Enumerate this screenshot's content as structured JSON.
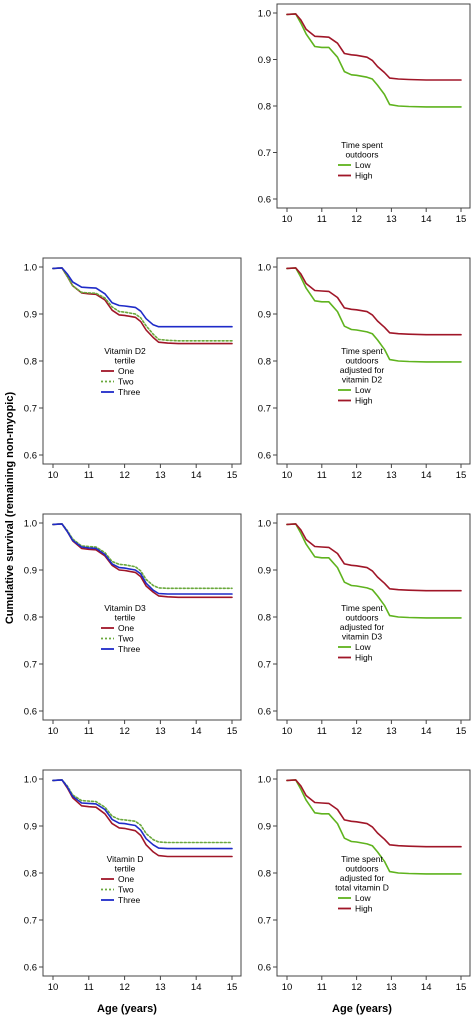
{
  "shared": {
    "ylabel": "Cumulative survival (remaining non-myopic)",
    "xlabel": "Age (years)",
    "xticks": [
      "10",
      "11",
      "12",
      "13",
      "14",
      "15"
    ],
    "yticks": [
      "0.6",
      "0.7",
      "0.8",
      "0.9",
      "1.0"
    ],
    "colors": {
      "green": "#5fb31e",
      "red": "#a01628",
      "blue": "#1f2bc8",
      "dotted_green": "#6aa83c"
    }
  },
  "chart_data": [
    {
      "id": "outdoors",
      "type": "line",
      "xlim": [
        10,
        15
      ],
      "ylim": [
        0.6,
        1.0
      ],
      "legend_title": "Time spent outdoors",
      "legend_lines": [
        "Time spent",
        "outdoors"
      ],
      "series": [
        {
          "name": "Low",
          "color": "#5fb31e",
          "dash": "",
          "x": [
            10.0,
            10.25,
            10.4,
            10.55,
            10.8,
            11.0,
            11.2,
            11.45,
            11.65,
            11.85,
            12.0,
            12.3,
            12.45,
            12.6,
            12.8,
            12.95,
            13.2,
            13.5,
            14.0,
            15.0
          ],
          "y": [
            0.997,
            0.998,
            0.978,
            0.955,
            0.928,
            0.926,
            0.926,
            0.905,
            0.874,
            0.867,
            0.866,
            0.862,
            0.858,
            0.845,
            0.825,
            0.803,
            0.8,
            0.799,
            0.798,
            0.798
          ]
        },
        {
          "name": "High",
          "color": "#a01628",
          "dash": "",
          "x": [
            10.0,
            10.25,
            10.4,
            10.55,
            10.8,
            11.0,
            11.2,
            11.45,
            11.65,
            11.85,
            12.0,
            12.3,
            12.45,
            12.6,
            12.8,
            12.95,
            13.2,
            13.5,
            14.0,
            15.0
          ],
          "y": [
            0.997,
            0.998,
            0.985,
            0.965,
            0.95,
            0.949,
            0.948,
            0.935,
            0.913,
            0.91,
            0.909,
            0.905,
            0.898,
            0.885,
            0.872,
            0.86,
            0.858,
            0.857,
            0.856,
            0.856
          ]
        }
      ]
    },
    {
      "id": "d2",
      "type": "line",
      "xlim": [
        10,
        15
      ],
      "ylim": [
        0.6,
        1.0
      ],
      "legend_title": "Vitamin D2 tertile",
      "legend_lines": [
        "Vitamin D2",
        "tertile"
      ],
      "series": [
        {
          "name": "One",
          "color": "#a01628",
          "dash": "",
          "x": [
            10.0,
            10.25,
            10.4,
            10.55,
            10.8,
            11.0,
            11.2,
            11.45,
            11.65,
            11.85,
            12.0,
            12.3,
            12.45,
            12.6,
            12.8,
            12.95,
            13.2,
            13.5,
            14.0,
            15.0
          ],
          "y": [
            0.997,
            0.998,
            0.98,
            0.96,
            0.945,
            0.943,
            0.942,
            0.93,
            0.908,
            0.898,
            0.897,
            0.893,
            0.884,
            0.866,
            0.85,
            0.84,
            0.838,
            0.837,
            0.837,
            0.837
          ]
        },
        {
          "name": "Two",
          "color": "#6aa83c",
          "dash": "2,2",
          "x": [
            10.0,
            10.25,
            10.4,
            10.55,
            10.8,
            11.0,
            11.2,
            11.45,
            11.65,
            11.85,
            12.0,
            12.3,
            12.45,
            12.6,
            12.8,
            12.95,
            13.2,
            13.5,
            14.0,
            15.0
          ],
          "y": [
            0.997,
            0.998,
            0.98,
            0.96,
            0.946,
            0.945,
            0.944,
            0.934,
            0.915,
            0.905,
            0.904,
            0.9,
            0.892,
            0.875,
            0.857,
            0.846,
            0.844,
            0.843,
            0.843,
            0.843
          ]
        },
        {
          "name": "Three",
          "color": "#1f2bc8",
          "dash": "",
          "x": [
            10.0,
            10.25,
            10.4,
            10.55,
            10.8,
            11.0,
            11.2,
            11.45,
            11.65,
            11.85,
            12.0,
            12.3,
            12.45,
            12.6,
            12.8,
            12.95,
            13.2,
            13.5,
            14.0,
            15.0
          ],
          "y": [
            0.997,
            0.998,
            0.985,
            0.968,
            0.957,
            0.956,
            0.955,
            0.943,
            0.924,
            0.918,
            0.917,
            0.914,
            0.906,
            0.89,
            0.877,
            0.873,
            0.873,
            0.873,
            0.873,
            0.873
          ]
        }
      ]
    },
    {
      "id": "outdoors_d2",
      "type": "line",
      "xlim": [
        10,
        15
      ],
      "ylim": [
        0.6,
        1.0
      ],
      "legend_title": "Time spent outdoors adjusted for vitamin D2",
      "legend_lines": [
        "Time spent",
        "outdoors",
        "adjusted for",
        "vitamin D2"
      ],
      "series": [
        {
          "name": "Low",
          "color": "#5fb31e",
          "dash": "",
          "x": [
            10.0,
            10.25,
            10.4,
            10.55,
            10.8,
            11.0,
            11.2,
            11.45,
            11.65,
            11.85,
            12.0,
            12.3,
            12.45,
            12.6,
            12.8,
            12.95,
            13.2,
            13.5,
            14.0,
            15.0
          ],
          "y": [
            0.997,
            0.998,
            0.978,
            0.955,
            0.928,
            0.926,
            0.926,
            0.905,
            0.874,
            0.867,
            0.866,
            0.862,
            0.858,
            0.845,
            0.825,
            0.803,
            0.8,
            0.799,
            0.798,
            0.798
          ]
        },
        {
          "name": "High",
          "color": "#a01628",
          "dash": "",
          "x": [
            10.0,
            10.25,
            10.4,
            10.55,
            10.8,
            11.0,
            11.2,
            11.45,
            11.65,
            11.85,
            12.0,
            12.3,
            12.45,
            12.6,
            12.8,
            12.95,
            13.2,
            13.5,
            14.0,
            15.0
          ],
          "y": [
            0.997,
            0.998,
            0.985,
            0.965,
            0.95,
            0.949,
            0.948,
            0.935,
            0.913,
            0.91,
            0.909,
            0.905,
            0.898,
            0.885,
            0.872,
            0.86,
            0.858,
            0.857,
            0.856,
            0.856
          ]
        }
      ]
    },
    {
      "id": "d3",
      "type": "line",
      "xlim": [
        10,
        15
      ],
      "ylim": [
        0.6,
        1.0
      ],
      "legend_title": "Vitamin D3 tertile",
      "legend_lines": [
        "Vitamin D3",
        "tertile"
      ],
      "series": [
        {
          "name": "One",
          "color": "#a01628",
          "dash": "",
          "x": [
            10.0,
            10.25,
            10.4,
            10.55,
            10.8,
            11.0,
            11.2,
            11.45,
            11.65,
            11.85,
            12.0,
            12.3,
            12.45,
            12.6,
            12.8,
            12.95,
            13.2,
            13.5,
            14.0,
            15.0
          ],
          "y": [
            0.997,
            0.998,
            0.982,
            0.962,
            0.946,
            0.944,
            0.943,
            0.93,
            0.91,
            0.9,
            0.899,
            0.895,
            0.886,
            0.866,
            0.853,
            0.845,
            0.843,
            0.842,
            0.842,
            0.842
          ]
        },
        {
          "name": "Two",
          "color": "#6aa83c",
          "dash": "2,2",
          "x": [
            10.0,
            10.25,
            10.4,
            10.55,
            10.8,
            11.0,
            11.2,
            11.45,
            11.65,
            11.85,
            12.0,
            12.3,
            12.45,
            12.6,
            12.8,
            12.95,
            13.2,
            13.5,
            14.0,
            15.0
          ],
          "y": [
            0.997,
            0.998,
            0.984,
            0.966,
            0.951,
            0.95,
            0.949,
            0.937,
            0.918,
            0.912,
            0.911,
            0.907,
            0.898,
            0.88,
            0.867,
            0.862,
            0.861,
            0.861,
            0.861,
            0.861
          ]
        },
        {
          "name": "Three",
          "color": "#1f2bc8",
          "dash": "",
          "x": [
            10.0,
            10.25,
            10.4,
            10.55,
            10.8,
            11.0,
            11.2,
            11.45,
            11.65,
            11.85,
            12.0,
            12.3,
            12.45,
            12.6,
            12.8,
            12.95,
            13.2,
            13.5,
            14.0,
            15.0
          ],
          "y": [
            0.997,
            0.998,
            0.982,
            0.963,
            0.949,
            0.947,
            0.946,
            0.933,
            0.913,
            0.905,
            0.904,
            0.9,
            0.892,
            0.872,
            0.857,
            0.85,
            0.849,
            0.849,
            0.849,
            0.849
          ]
        }
      ]
    },
    {
      "id": "outdoors_d3",
      "type": "line",
      "xlim": [
        10,
        15
      ],
      "ylim": [
        0.6,
        1.0
      ],
      "legend_title": "Time spent outdoors adjusted for vitamin D3",
      "legend_lines": [
        "Time spent",
        "outdoors",
        "adjusted for",
        "vitamin D3"
      ],
      "series": [
        {
          "name": "Low",
          "color": "#5fb31e",
          "dash": "",
          "x": [
            10.0,
            10.25,
            10.4,
            10.55,
            10.8,
            11.0,
            11.2,
            11.45,
            11.65,
            11.85,
            12.0,
            12.3,
            12.45,
            12.6,
            12.8,
            12.95,
            13.2,
            13.5,
            14.0,
            15.0
          ],
          "y": [
            0.997,
            0.998,
            0.978,
            0.955,
            0.928,
            0.926,
            0.926,
            0.905,
            0.874,
            0.867,
            0.866,
            0.862,
            0.858,
            0.845,
            0.825,
            0.803,
            0.8,
            0.799,
            0.798,
            0.798
          ]
        },
        {
          "name": "High",
          "color": "#a01628",
          "dash": "",
          "x": [
            10.0,
            10.25,
            10.4,
            10.55,
            10.8,
            11.0,
            11.2,
            11.45,
            11.65,
            11.85,
            12.0,
            12.3,
            12.45,
            12.6,
            12.8,
            12.95,
            13.2,
            13.5,
            14.0,
            15.0
          ],
          "y": [
            0.997,
            0.998,
            0.985,
            0.965,
            0.95,
            0.949,
            0.948,
            0.935,
            0.913,
            0.91,
            0.909,
            0.905,
            0.898,
            0.885,
            0.872,
            0.86,
            0.858,
            0.857,
            0.856,
            0.856
          ]
        }
      ]
    },
    {
      "id": "d",
      "type": "line",
      "xlim": [
        10,
        15
      ],
      "ylim": [
        0.6,
        1.0
      ],
      "legend_title": "Vitamin D tertile",
      "legend_lines": [
        "Vitamin D",
        "tertile"
      ],
      "series": [
        {
          "name": "One",
          "color": "#a01628",
          "dash": "",
          "x": [
            10.0,
            10.25,
            10.4,
            10.55,
            10.8,
            11.0,
            11.2,
            11.45,
            11.65,
            11.85,
            12.0,
            12.3,
            12.45,
            12.6,
            12.8,
            12.95,
            13.2,
            13.5,
            14.0,
            15.0
          ],
          "y": [
            0.997,
            0.998,
            0.981,
            0.96,
            0.943,
            0.941,
            0.94,
            0.926,
            0.905,
            0.896,
            0.895,
            0.89,
            0.88,
            0.86,
            0.845,
            0.837,
            0.835,
            0.835,
            0.835,
            0.835
          ]
        },
        {
          "name": "Two",
          "color": "#6aa83c",
          "dash": "2,2",
          "x": [
            10.0,
            10.25,
            10.4,
            10.55,
            10.8,
            11.0,
            11.2,
            11.45,
            11.65,
            11.85,
            12.0,
            12.3,
            12.45,
            12.6,
            12.8,
            12.95,
            13.2,
            13.5,
            14.0,
            15.0
          ],
          "y": [
            0.997,
            0.998,
            0.985,
            0.966,
            0.954,
            0.953,
            0.952,
            0.94,
            0.921,
            0.914,
            0.913,
            0.91,
            0.902,
            0.884,
            0.871,
            0.866,
            0.865,
            0.865,
            0.865,
            0.865
          ]
        },
        {
          "name": "Three",
          "color": "#1f2bc8",
          "dash": "",
          "x": [
            10.0,
            10.25,
            10.4,
            10.55,
            10.8,
            11.0,
            11.2,
            11.45,
            11.65,
            11.85,
            12.0,
            12.3,
            12.45,
            12.6,
            12.8,
            12.95,
            13.2,
            13.5,
            14.0,
            15.0
          ],
          "y": [
            0.997,
            0.998,
            0.983,
            0.963,
            0.949,
            0.948,
            0.947,
            0.935,
            0.914,
            0.906,
            0.905,
            0.901,
            0.891,
            0.873,
            0.86,
            0.853,
            0.852,
            0.852,
            0.852,
            0.852
          ]
        }
      ]
    },
    {
      "id": "outdoors_d",
      "type": "line",
      "xlim": [
        10,
        15
      ],
      "ylim": [
        0.6,
        1.0
      ],
      "legend_title": "Time spent outdoors adjusted for total vitamin D",
      "legend_lines": [
        "Time spent",
        "outdoors",
        "adjusted for",
        "total vitamin D"
      ],
      "series": [
        {
          "name": "Low",
          "color": "#5fb31e",
          "dash": "",
          "x": [
            10.0,
            10.25,
            10.4,
            10.55,
            10.8,
            11.0,
            11.2,
            11.45,
            11.65,
            11.85,
            12.0,
            12.3,
            12.45,
            12.6,
            12.8,
            12.95,
            13.2,
            13.5,
            14.0,
            15.0
          ],
          "y": [
            0.997,
            0.998,
            0.978,
            0.955,
            0.928,
            0.926,
            0.926,
            0.905,
            0.874,
            0.867,
            0.866,
            0.862,
            0.858,
            0.845,
            0.825,
            0.803,
            0.8,
            0.799,
            0.798,
            0.798
          ]
        },
        {
          "name": "High",
          "color": "#a01628",
          "dash": "",
          "x": [
            10.0,
            10.25,
            10.4,
            10.55,
            10.8,
            11.0,
            11.2,
            11.45,
            11.65,
            11.85,
            12.0,
            12.3,
            12.45,
            12.6,
            12.8,
            12.95,
            13.2,
            13.5,
            14.0,
            15.0
          ],
          "y": [
            0.997,
            0.998,
            0.985,
            0.965,
            0.95,
            0.949,
            0.948,
            0.935,
            0.913,
            0.91,
            0.909,
            0.905,
            0.898,
            0.885,
            0.872,
            0.86,
            0.858,
            0.857,
            0.856,
            0.856
          ]
        }
      ]
    }
  ]
}
